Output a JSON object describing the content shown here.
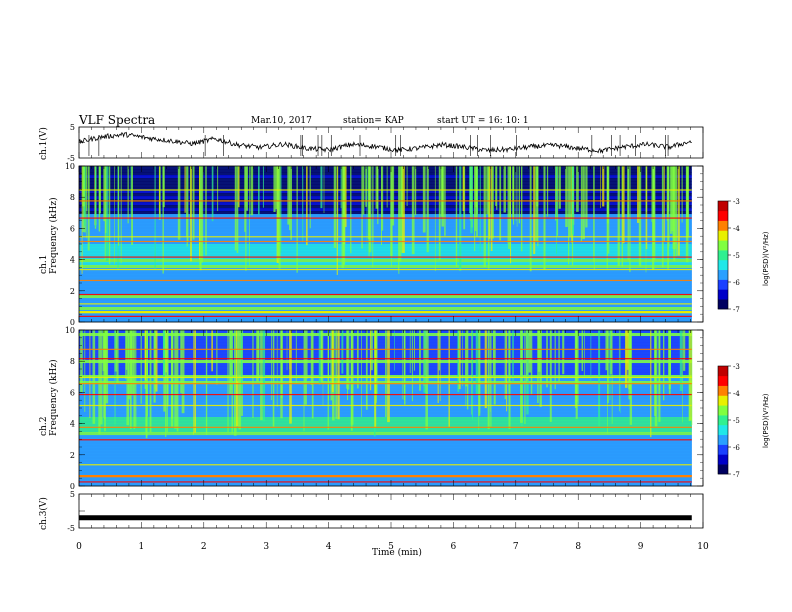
{
  "header": {
    "title": "VLF Spectra",
    "date": "Mar.10, 2017",
    "station": "station= KAP",
    "start_ut": "start  UT  =   16: 10: 1"
  },
  "chart_data": [
    {
      "type": "line",
      "panel": "ch1-waveform",
      "ylabel": "ch.1(V)",
      "ylim": [
        -5,
        5
      ],
      "yticks": [
        "5",
        "-5"
      ],
      "xlim": [
        0,
        10
      ],
      "series": [
        {
          "values": [
            0.2,
            1.8,
            2.6,
            1.5,
            0.6,
            -0.4,
            1.2,
            -0.8,
            -1.6,
            -0.5,
            -1.9,
            -2.4,
            -0.6,
            -1.2,
            -2.5,
            -1.8,
            -0.7,
            -1.5,
            -2.6,
            -2.2,
            -1.3,
            -0.9,
            -1.9,
            -2.7,
            -1.4,
            -0.6,
            -1.5,
            0.4
          ]
        }
      ],
      "color": "#000000"
    },
    {
      "type": "heatmap",
      "panel": "ch1-spectrogram",
      "ylabel": "ch.1\nFrequency (kHz)",
      "ylim": [
        0,
        10
      ],
      "yticks": [
        "0",
        "2",
        "4",
        "6",
        "8",
        "10"
      ],
      "xlim": [
        0,
        10
      ],
      "colorbar": {
        "label": "log(PSD)(V²/Hz)",
        "range": [
          -7,
          -3
        ],
        "ticks": [
          "-3",
          "-4",
          "-5",
          "-6",
          "-7"
        ]
      }
    },
    {
      "type": "heatmap",
      "panel": "ch2-spectrogram",
      "ylabel": "ch.2\nFrequency (kHz)",
      "ylim": [
        0,
        10
      ],
      "yticks": [
        "0",
        "2",
        "4",
        "6",
        "8",
        "10"
      ],
      "xlim": [
        0,
        10
      ],
      "colorbar": {
        "label": "log(PSD)(V²/Hz)",
        "range": [
          -7,
          -3
        ],
        "ticks": [
          "-3",
          "-4",
          "-5",
          "-6",
          "-7"
        ]
      }
    },
    {
      "type": "line",
      "panel": "ch3-waveform",
      "ylabel": "ch.3(V)",
      "ylim": [
        -5,
        5
      ],
      "yticks": [
        "5",
        "-5"
      ],
      "xlim": [
        0,
        10
      ],
      "xlabel": "Time  (min)",
      "xticks": [
        "0",
        "1",
        "2",
        "3",
        "4",
        "5",
        "6",
        "7",
        "8",
        "9",
        "10"
      ],
      "series": [
        {
          "values": [
            -2.0,
            -2.0
          ],
          "x": [
            0,
            9.82
          ]
        }
      ],
      "color": "#000000"
    }
  ],
  "colormap": [
    "#000060",
    "#0000c8",
    "#1a40ff",
    "#2aa0ff",
    "#20e8e8",
    "#30f090",
    "#80ff40",
    "#e8f000",
    "#ff8000",
    "#ff0000",
    "#c00000"
  ]
}
